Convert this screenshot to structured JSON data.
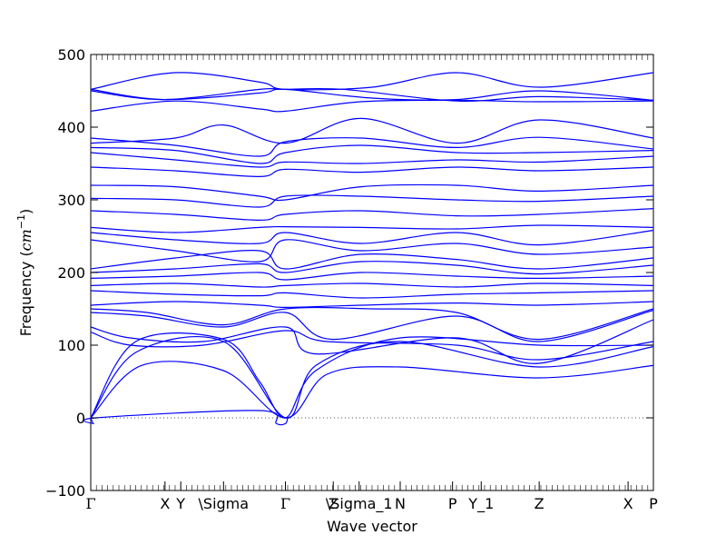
{
  "chart_data": {
    "type": "line",
    "title": "",
    "xlabel": "Wave vector",
    "ylabel_text": "Frequency (",
    "ylabel_unit": "cm",
    "ylabel_exp": "−1",
    "ylabel_close": ")",
    "ylim": [
      -100,
      500
    ],
    "yticks": [
      -100,
      0,
      100,
      200,
      300,
      400,
      500
    ],
    "xlim": [
      0,
      1
    ],
    "grid": false,
    "legend": "none",
    "line_color": "#0000ff",
    "zero_line_color": "#555555",
    "high_symmetry_points": [
      {
        "label": "Γ",
        "x": 0.0
      },
      {
        "label": "X",
        "x": 0.132
      },
      {
        "label": "Y",
        "x": 0.16
      },
      {
        "label": "\\Sigma",
        "x": 0.236
      },
      {
        "label": "Γ",
        "x": 0.346
      },
      {
        "label": "Z",
        "x": 0.431
      },
      {
        "label": "\\Sigma_1",
        "x": 0.477
      },
      {
        "label": "N",
        "x": 0.55
      },
      {
        "label": "P",
        "x": 0.643
      },
      {
        "label": "Y_1",
        "x": 0.694
      },
      {
        "label": "Z",
        "x": 0.797
      },
      {
        "label": "X",
        "x": 0.955
      },
      {
        "label": "P",
        "x": 1.0
      }
    ],
    "series": [
      {
        "x": [
          0,
          0.15,
          0.3,
          0.346,
          0.5,
          0.65,
          0.797,
          1.0
        ],
        "y": [
          452,
          475,
          462,
          452,
          455,
          475,
          455,
          475
        ]
      },
      {
        "x": [
          0,
          0.13,
          0.3,
          0.346,
          0.5,
          0.65,
          0.797,
          1.0
        ],
        "y": [
          452,
          438,
          447,
          452,
          440,
          438,
          450,
          437
        ]
      },
      {
        "x": [
          0,
          0.13,
          0.3,
          0.346,
          0.45,
          0.65,
          0.797,
          1.0
        ],
        "y": [
          450,
          438,
          452,
          452,
          452,
          436,
          442,
          437
        ]
      },
      {
        "x": [
          0,
          0.15,
          0.3,
          0.346,
          0.48,
          0.65,
          0.797,
          1.0
        ],
        "y": [
          422,
          436,
          425,
          422,
          435,
          437,
          435,
          436
        ]
      },
      {
        "x": [
          0,
          0.15,
          0.236,
          0.346,
          0.48,
          0.65,
          0.797,
          1.0
        ],
        "y": [
          378,
          385,
          403,
          378,
          412,
          378,
          410,
          385
        ]
      },
      {
        "x": [
          0,
          0.15,
          0.3,
          0.346,
          0.48,
          0.65,
          0.797,
          1.0
        ],
        "y": [
          385,
          375,
          360,
          380,
          385,
          372,
          386,
          370
        ]
      },
      {
        "x": [
          0,
          0.15,
          0.3,
          0.346,
          0.48,
          0.65,
          0.797,
          1.0
        ],
        "y": [
          372,
          368,
          350,
          365,
          375,
          365,
          365,
          368
        ]
      },
      {
        "x": [
          0,
          0.15,
          0.3,
          0.346,
          0.48,
          0.65,
          0.797,
          1.0
        ],
        "y": [
          365,
          355,
          345,
          352,
          350,
          355,
          352,
          360
        ]
      },
      {
        "x": [
          0,
          0.15,
          0.3,
          0.346,
          0.48,
          0.65,
          0.797,
          1.0
        ],
        "y": [
          345,
          340,
          332,
          342,
          338,
          345,
          340,
          345
        ]
      },
      {
        "x": [
          0,
          0.15,
          0.3,
          0.346,
          0.48,
          0.65,
          0.797,
          1.0
        ],
        "y": [
          320,
          318,
          305,
          300,
          318,
          320,
          312,
          320
        ]
      },
      {
        "x": [
          0,
          0.15,
          0.3,
          0.346,
          0.48,
          0.65,
          0.797,
          1.0
        ],
        "y": [
          302,
          300,
          290,
          305,
          305,
          300,
          298,
          305
        ]
      },
      {
        "x": [
          0,
          0.15,
          0.3,
          0.346,
          0.48,
          0.65,
          0.797,
          1.0
        ],
        "y": [
          285,
          280,
          272,
          280,
          285,
          278,
          280,
          288
        ]
      },
      {
        "x": [
          0,
          0.15,
          0.3,
          0.346,
          0.48,
          0.65,
          0.797,
          1.0
        ],
        "y": [
          262,
          255,
          262,
          263,
          262,
          260,
          265,
          262
        ]
      },
      {
        "x": [
          0,
          0.15,
          0.3,
          0.346,
          0.48,
          0.65,
          0.797,
          1.0
        ],
        "y": [
          255,
          245,
          240,
          255,
          240,
          255,
          238,
          258
        ]
      },
      {
        "x": [
          0,
          0.15,
          0.3,
          0.346,
          0.48,
          0.65,
          0.797,
          1.0
        ],
        "y": [
          245,
          230,
          215,
          245,
          230,
          240,
          225,
          235
        ]
      },
      {
        "x": [
          0,
          0.15,
          0.3,
          0.346,
          0.48,
          0.65,
          0.797,
          1.0
        ],
        "y": [
          205,
          220,
          230,
          205,
          225,
          218,
          205,
          220
        ]
      },
      {
        "x": [
          0,
          0.15,
          0.3,
          0.346,
          0.48,
          0.65,
          0.797,
          1.0
        ],
        "y": [
          200,
          205,
          212,
          200,
          215,
          210,
          198,
          210
        ]
      },
      {
        "x": [
          0,
          0.15,
          0.3,
          0.346,
          0.48,
          0.65,
          0.797,
          1.0
        ],
        "y": [
          192,
          195,
          200,
          190,
          200,
          195,
          192,
          195
        ]
      },
      {
        "x": [
          0,
          0.15,
          0.3,
          0.346,
          0.48,
          0.65,
          0.797,
          1.0
        ],
        "y": [
          182,
          185,
          180,
          182,
          185,
          180,
          185,
          182
        ]
      },
      {
        "x": [
          0,
          0.15,
          0.3,
          0.346,
          0.48,
          0.65,
          0.797,
          1.0
        ],
        "y": [
          175,
          170,
          168,
          172,
          165,
          170,
          172,
          175
        ]
      },
      {
        "x": [
          0,
          0.15,
          0.3,
          0.346,
          0.48,
          0.65,
          0.797,
          1.0
        ],
        "y": [
          155,
          160,
          155,
          152,
          155,
          158,
          155,
          160
        ]
      },
      {
        "x": [
          0,
          0.1,
          0.236,
          0.346,
          0.5,
          0.65,
          0.797,
          1.0
        ],
        "y": [
          150,
          145,
          128,
          150,
          150,
          145,
          108,
          150
        ]
      },
      {
        "x": [
          0,
          0.1,
          0.236,
          0.346,
          0.43,
          0.65,
          0.797,
          1.0
        ],
        "y": [
          145,
          140,
          125,
          145,
          108,
          140,
          105,
          148
        ]
      },
      {
        "x": [
          0,
          0.07,
          0.2,
          0.346,
          0.4,
          0.65,
          0.797,
          1.0
        ],
        "y": [
          125,
          110,
          105,
          125,
          88,
          110,
          75,
          135
        ]
      },
      {
        "x": [
          0,
          0.07,
          0.2,
          0.346,
          0.42,
          0.65,
          0.797,
          1.0
        ],
        "y": [
          118,
          100,
          100,
          120,
          105,
          100,
          80,
          105
        ]
      },
      {
        "x": [
          0,
          0.08,
          0.236,
          0.3,
          0.346,
          0.4,
          0.55,
          0.797,
          1.0
        ],
        "y": [
          0,
          105,
          108,
          50,
          0,
          65,
          110,
          100,
          100
        ]
      },
      {
        "x": [
          0,
          0.08,
          0.236,
          0.346,
          0.4,
          0.55,
          0.797,
          1.0
        ],
        "y": [
          0,
          90,
          105,
          0,
          72,
          105,
          70,
          98
        ]
      },
      {
        "x": [
          0,
          0.09,
          0.236,
          0.346,
          0.42,
          0.55,
          0.797,
          1.0
        ],
        "y": [
          0,
          72,
          65,
          0,
          60,
          70,
          55,
          72
        ]
      },
      {
        "x": [
          0,
          0.005,
          0.01,
          0.3,
          0.33,
          0.346,
          0.35
        ],
        "y": [
          0,
          -8,
          0,
          10,
          -8,
          -8,
          0
        ]
      }
    ]
  }
}
